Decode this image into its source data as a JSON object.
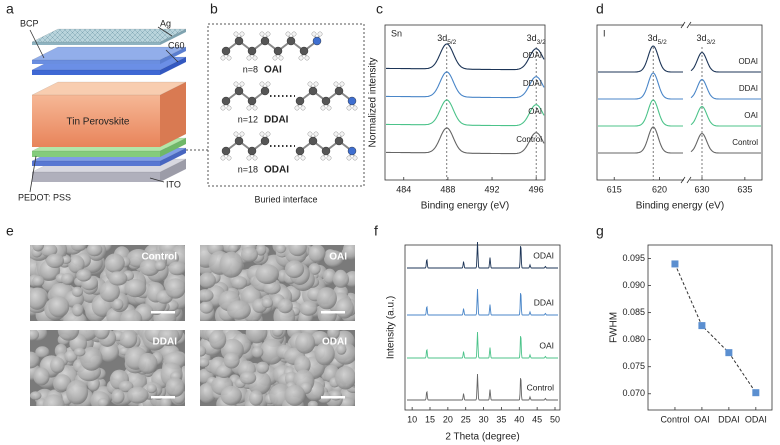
{
  "panel_labels": [
    "a",
    "b",
    "c",
    "d",
    "e",
    "f",
    "g"
  ],
  "device": {
    "layers": {
      "bcp": "BCP",
      "ag": "Ag",
      "c60": "C60",
      "perovskite": "Tin Perovskite",
      "pedot": "PEDOT: PSS",
      "ito": "ITO"
    }
  },
  "molecules": {
    "items": [
      {
        "n": "n=8",
        "name": "OAI"
      },
      {
        "n": "n=12",
        "name": "DDAI"
      },
      {
        "n": "n=18",
        "name": "ODAI"
      }
    ],
    "caption": "Buried interface"
  },
  "sem": {
    "labels": [
      "Control",
      "OAI",
      "DDAI",
      "ODAI"
    ]
  },
  "chart_data": [
    {
      "type": "spectrum",
      "element": "Sn",
      "xlabel": "Binding energy (eV)",
      "ylabel": "Normalized intensity",
      "xlim": [
        482.3,
        496.8
      ],
      "xticks": [
        484,
        488,
        492,
        496
      ],
      "peaks": [
        {
          "base": "3d",
          "sub": "5/2",
          "value": 487.9,
          "height": 1
        },
        {
          "base": "3d",
          "sub": "3/2",
          "value": 496.0,
          "height": 0.85
        }
      ],
      "series": [
        {
          "name": "ODAI",
          "color": "#1d3557"
        },
        {
          "name": "DDAI",
          "color": "#4a86c8"
        },
        {
          "name": "OAI",
          "color": "#4cc38a"
        },
        {
          "name": "Control",
          "color": "#666666"
        }
      ]
    },
    {
      "type": "broken_spectrum",
      "element": "I",
      "xlabel": "Binding energy (eV)",
      "segments": [
        {
          "xlim": [
            613.1,
            622.7
          ],
          "xticks": [
            615,
            620
          ]
        },
        {
          "xlim": [
            628.6,
            637
          ],
          "xticks": [
            630,
            635
          ]
        }
      ],
      "peaks": [
        {
          "base": "3d",
          "sub": "5/2",
          "value": 619.3,
          "height": 1,
          "segment": 0
        },
        {
          "base": "3d",
          "sub": "3/2",
          "value": 630.0,
          "height": 0.75,
          "segment": 1
        }
      ],
      "series": [
        {
          "name": "ODAI",
          "color": "#1d3557"
        },
        {
          "name": "DDAI",
          "color": "#4a86c8"
        },
        {
          "name": "OAI",
          "color": "#4cc38a"
        },
        {
          "name": "Control",
          "color": "#666666"
        }
      ]
    },
    {
      "type": "xrd",
      "xlabel": "2 Theta (degree)",
      "ylabel": "Intensity (a.u.)",
      "xlim": [
        8,
        51.4
      ],
      "xticks": [
        10,
        15,
        20,
        25,
        30,
        35,
        40,
        45,
        50
      ],
      "peaks": [
        14.1,
        24.4,
        28.3,
        31.8,
        40.4,
        43.0,
        47.3
      ],
      "peak_heights": [
        0.35,
        0.25,
        1,
        0.4,
        0.95,
        0.12,
        0.06
      ],
      "series": [
        {
          "name": "ODAI",
          "color": "#1d3557"
        },
        {
          "name": "DDAI",
          "color": "#4a86c8"
        },
        {
          "name": "OAI",
          "color": "#4cc38a"
        },
        {
          "name": "Control",
          "color": "#666666"
        }
      ]
    },
    {
      "type": "line",
      "ylabel": "FWHM",
      "categories": [
        "Control",
        "OAI",
        "DDAI",
        "ODAI"
      ],
      "values": [
        0.094,
        0.0826,
        0.0776,
        0.0702
      ],
      "color": "#5b8fd0",
      "ylim": [
        0.067,
        0.0975
      ],
      "yticks": [
        {
          "value": 0.07,
          "label": "0.070"
        },
        {
          "value": 0.075,
          "label": "0.075"
        },
        {
          "value": 0.08,
          "label": "0.080"
        },
        {
          "value": 0.085,
          "label": "0.085"
        },
        {
          "value": 0.09,
          "label": "0.090"
        },
        {
          "value": 0.095,
          "label": "0.095"
        }
      ]
    }
  ]
}
